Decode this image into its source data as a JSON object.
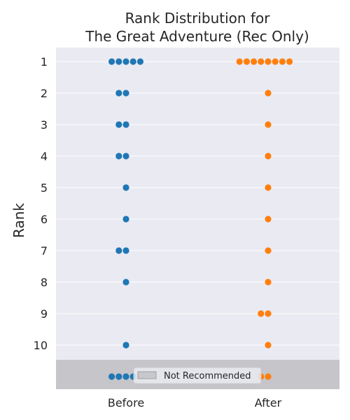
{
  "chart_data": {
    "type": "scatter",
    "subtype": "swarm",
    "title": [
      "Rank Distribution for",
      "The Great Adventure (Rec Only)"
    ],
    "xlabel": "",
    "ylabel": "Rank",
    "categories": [
      "Before",
      "After"
    ],
    "y_ticks": [
      "1",
      "2",
      "3",
      "4",
      "5",
      "6",
      "7",
      "8",
      "9",
      "10"
    ],
    "y_inverted": true,
    "not_recommended_label": "Not Recommended",
    "legend_position": "bottom-center",
    "grid": true,
    "series": [
      {
        "category": "Before",
        "color": "#1f77b4",
        "values": [
          1,
          1,
          1,
          1,
          1,
          2,
          2,
          3,
          3,
          4,
          4,
          5,
          6,
          7,
          7,
          8,
          10,
          11,
          11,
          11,
          11
        ]
      },
      {
        "category": "After",
        "color": "#ff7f0e",
        "values": [
          1,
          1,
          1,
          1,
          1,
          1,
          1,
          1,
          2,
          3,
          4,
          5,
          6,
          7,
          8,
          9,
          9,
          10,
          11,
          11
        ]
      }
    ]
  }
}
